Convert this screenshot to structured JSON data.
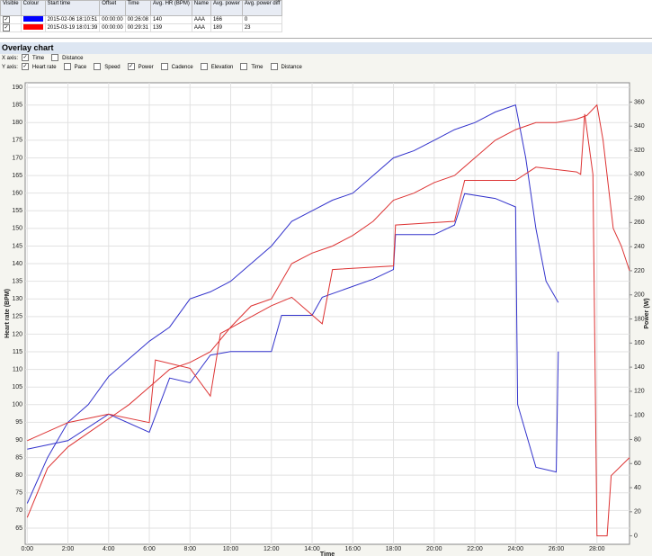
{
  "table": {
    "headers": [
      "Visible",
      "Colour",
      "Start time",
      "Offset",
      "Time",
      "Avg. HR (BPM)",
      "Name",
      "Avg. power",
      "Avg. power diff"
    ],
    "rows": [
      {
        "visible": true,
        "colour": "#0000ff",
        "start": "2015-02-06 18:10:51",
        "offset": "00:00:00",
        "time": "00:26:08",
        "hr": "140",
        "name": "AAA",
        "power": "166",
        "diff": "0"
      },
      {
        "visible": true,
        "colour": "#ff0000",
        "start": "2015-03-19 18:01:39",
        "offset": "00:00:00",
        "time": "00:29:31",
        "hr": "139",
        "name": "AAA",
        "power": "189",
        "diff": "23"
      }
    ]
  },
  "panel": {
    "title": "Overlay chart",
    "x_axis_label": "X axis:",
    "x_options": [
      {
        "label": "Time",
        "checked": true
      },
      {
        "label": "Distance",
        "checked": false
      }
    ],
    "y_axis_label": "Y axis:",
    "y_options": [
      {
        "label": "Heart rate",
        "checked": true
      },
      {
        "label": "Pace",
        "checked": false
      },
      {
        "label": "Speed",
        "checked": false
      },
      {
        "label": "Power",
        "checked": true
      },
      {
        "label": "Cadence",
        "checked": false
      },
      {
        "label": "Elevation",
        "checked": false
      },
      {
        "label": "Time",
        "checked": false
      },
      {
        "label": "Distance",
        "checked": false
      }
    ]
  },
  "chart_data": {
    "type": "line",
    "xlabel": "Time",
    "ylabel": "Heart rate (BPM)",
    "y2label": "Power (W)",
    "grid": true,
    "xlim": [
      -0.1,
      29.6
    ],
    "ylim": [
      60.4,
      191.3
    ],
    "y2lim": [
      -7,
      376
    ],
    "xticks": [
      {
        "value": 0,
        "label": "0:00"
      },
      {
        "value": 2,
        "label": "2:00"
      },
      {
        "value": 4,
        "label": "4:00"
      },
      {
        "value": 6,
        "label": "6:00"
      },
      {
        "value": 8,
        "label": "8:00"
      },
      {
        "value": 10,
        "label": "10:00"
      },
      {
        "value": 12,
        "label": "12:00"
      },
      {
        "value": 14,
        "label": "14:00"
      },
      {
        "value": 16,
        "label": "16:00"
      },
      {
        "value": 18,
        "label": "18:00"
      },
      {
        "value": 20,
        "label": "20:00"
      },
      {
        "value": 22,
        "label": "22:00"
      },
      {
        "value": 24,
        "label": "24:00"
      },
      {
        "value": 26,
        "label": "26:00"
      },
      {
        "value": 28,
        "label": "28:00"
      }
    ],
    "yticks": [
      65,
      70,
      75,
      80,
      85,
      90,
      95,
      100,
      105,
      110,
      115,
      120,
      125,
      130,
      135,
      140,
      145,
      150,
      155,
      160,
      165,
      170,
      175,
      180,
      185,
      190
    ],
    "y2ticks": [
      0,
      20,
      40,
      60,
      80,
      100,
      120,
      140,
      160,
      180,
      200,
      220,
      240,
      260,
      280,
      300,
      320,
      340,
      360
    ],
    "series": [
      {
        "color": "#3333cc",
        "x": [
          0,
          1,
          2,
          3,
          4,
          5,
          6,
          7,
          8,
          9,
          10,
          11,
          12,
          13,
          14,
          15,
          16,
          17,
          18,
          19,
          20,
          21,
          22,
          23,
          24,
          24.5,
          25,
          25.5,
          26.1
        ],
        "values": [
          72,
          85,
          95,
          100,
          108,
          113,
          118,
          122,
          130,
          132,
          135,
          140,
          145,
          152,
          155,
          158,
          160,
          165,
          170,
          172,
          175,
          178,
          180,
          183,
          185,
          170,
          150,
          135,
          129
        ]
      },
      {
        "color": "#dd3333",
        "x": [
          0,
          1,
          2,
          3,
          4,
          5,
          6,
          7,
          8,
          9,
          10,
          11,
          12,
          13,
          14,
          15,
          16,
          17,
          18,
          19,
          20,
          21,
          22,
          23,
          24,
          25,
          26,
          27,
          27.5,
          28,
          28.3,
          28.8,
          29.2,
          29.6
        ],
        "values": [
          68,
          82,
          88,
          92,
          96,
          100,
          105,
          110,
          112,
          115,
          122,
          128,
          130,
          140,
          143,
          145,
          148,
          152,
          158,
          160,
          163,
          165,
          170,
          175,
          178,
          180,
          180,
          181,
          182,
          185,
          175,
          150,
          145,
          138
        ]
      },
      {
        "color": "#3333cc",
        "axis": "y2",
        "x": [
          0,
          2,
          4,
          6,
          7,
          8,
          9,
          10,
          12,
          12.5,
          14,
          14.5,
          17,
          18,
          18.1,
          20,
          21,
          21.5,
          23,
          24,
          24.1,
          25,
          26,
          26.1
        ],
        "values": [
          72,
          79,
          101,
          86,
          131,
          127,
          150,
          153,
          153,
          183,
          183,
          198,
          213,
          221,
          250,
          250,
          258,
          284,
          280,
          273,
          109,
          57,
          53,
          153
        ]
      },
      {
        "color": "#dd3333",
        "axis": "y2",
        "x": [
          0,
          2,
          4,
          6,
          6.3,
          8,
          9,
          9.5,
          12,
          13,
          14.5,
          15,
          18,
          18.1,
          21,
          21.5,
          24,
          25,
          27,
          27.2,
          27.4,
          27.8,
          28,
          28.5,
          28.7,
          29.6
        ],
        "values": [
          79,
          94,
          101,
          94,
          146,
          139,
          116,
          168,
          191,
          198,
          176,
          221,
          224,
          258,
          261,
          295,
          295,
          306,
          302,
          300,
          350,
          300,
          0,
          0,
          50,
          65
        ]
      }
    ]
  }
}
